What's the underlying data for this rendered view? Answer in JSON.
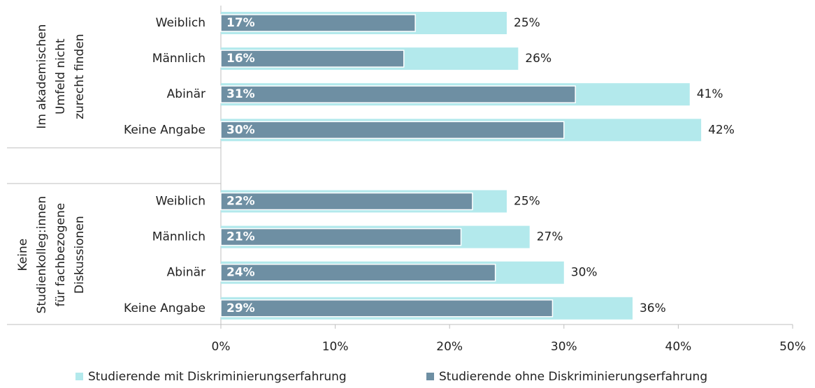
{
  "chart_data": {
    "type": "bar",
    "orientation": "horizontal",
    "groups": [
      {
        "label_lines": [
          "Im akademischen",
          "Umfeld nicht",
          "zurecht finden"
        ],
        "categories": [
          "Weiblich",
          "Männlich",
          "Abinär",
          "Keine Angabe"
        ]
      },
      {
        "label_lines": [
          "Keine",
          "Studienkolleg:innen",
          "für fachbezogene",
          "Diskussionen"
        ],
        "categories": [
          "Weiblich",
          "Männlich",
          "Abinär",
          "Keine Angabe"
        ]
      }
    ],
    "series": [
      {
        "name": "Studierende mit Diskriminierungserfahrung",
        "color": "#b3e9ec",
        "values": [
          25,
          26,
          41,
          42,
          25,
          27,
          30,
          36
        ],
        "value_labels": [
          "25%",
          "26%",
          "41%",
          "42%",
          "25%",
          "27%",
          "30%",
          "36%"
        ]
      },
      {
        "name": "Studierende ohne Diskriminierungserfahrung",
        "color": "#6e8fa3",
        "values": [
          17,
          16,
          31,
          30,
          22,
          21,
          24,
          29
        ],
        "value_labels": [
          "17%",
          "16%",
          "31%",
          "30%",
          "22%",
          "21%",
          "24%",
          "29%"
        ]
      }
    ],
    "xlim": [
      0,
      50
    ],
    "xticks": [
      {
        "value": 0,
        "label": "0%"
      },
      {
        "value": 10,
        "label": "10%"
      },
      {
        "value": 20,
        "label": "20%"
      },
      {
        "value": 30,
        "label": "30%"
      },
      {
        "value": 40,
        "label": "40%"
      },
      {
        "value": 50,
        "label": "50%"
      }
    ],
    "legend": "bottom"
  }
}
